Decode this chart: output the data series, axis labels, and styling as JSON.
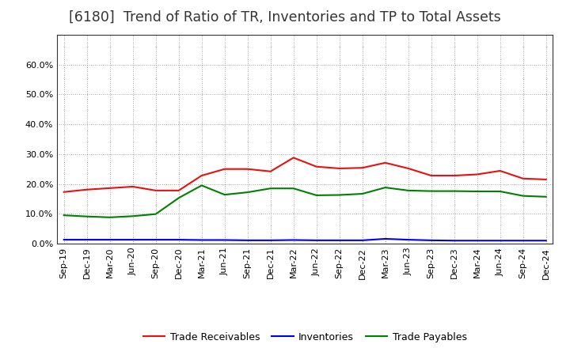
{
  "title": "[6180]  Trend of Ratio of TR, Inventories and TP to Total Assets",
  "x_labels": [
    "Sep-19",
    "Dec-19",
    "Mar-20",
    "Jun-20",
    "Sep-20",
    "Dec-20",
    "Mar-21",
    "Jun-21",
    "Sep-21",
    "Dec-21",
    "Mar-22",
    "Jun-22",
    "Sep-22",
    "Dec-22",
    "Mar-23",
    "Jun-23",
    "Sep-23",
    "Dec-23",
    "Mar-24",
    "Jun-24",
    "Sep-24",
    "Dec-24"
  ],
  "trade_receivables": [
    0.173,
    0.181,
    0.186,
    0.191,
    0.178,
    0.178,
    0.228,
    0.25,
    0.25,
    0.242,
    0.288,
    0.258,
    0.252,
    0.254,
    0.271,
    0.252,
    0.228,
    0.228,
    0.232,
    0.244,
    0.218,
    0.215
  ],
  "inventories": [
    0.013,
    0.013,
    0.013,
    0.013,
    0.013,
    0.013,
    0.012,
    0.012,
    0.011,
    0.011,
    0.012,
    0.011,
    0.011,
    0.011,
    0.016,
    0.013,
    0.011,
    0.01,
    0.01,
    0.01,
    0.01,
    0.01
  ],
  "trade_payables": [
    0.095,
    0.091,
    0.088,
    0.092,
    0.099,
    0.153,
    0.195,
    0.164,
    0.172,
    0.185,
    0.185,
    0.162,
    0.163,
    0.167,
    0.188,
    0.178,
    0.176,
    0.176,
    0.175,
    0.175,
    0.16,
    0.157
  ],
  "tr_color": "#e81010",
  "inv_color": "#0000ee",
  "tp_color": "#008000",
  "ylim": [
    0.0,
    0.7
  ],
  "yticks": [
    0.0,
    0.1,
    0.2,
    0.3,
    0.4,
    0.5,
    0.6
  ],
  "legend_labels": [
    "Trade Receivables",
    "Inventories",
    "Trade Payables"
  ],
  "bg_color": "#ffffff",
  "grid_color": "#888888",
  "title_color": "#333333",
  "title_fontsize": 12.5,
  "tick_fontsize": 8,
  "legend_fontsize": 9
}
